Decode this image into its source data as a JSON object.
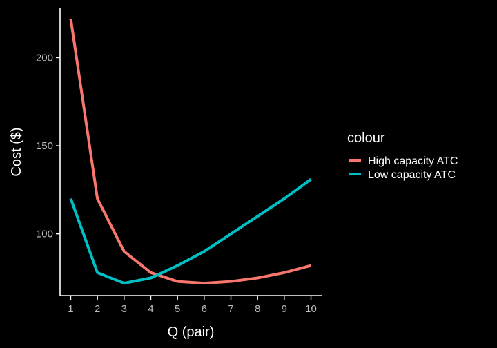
{
  "chart_data": {
    "type": "line",
    "xlabel": "Q (pair)",
    "ylabel": "Cost ($)",
    "x": [
      1,
      2,
      3,
      4,
      5,
      6,
      7,
      8,
      9,
      10
    ],
    "xlim": [
      0.6,
      10.4
    ],
    "ylim": [
      65,
      228
    ],
    "xticks": [
      "1",
      "2",
      "3",
      "4",
      "5",
      "6",
      "7",
      "8",
      "9",
      "10"
    ],
    "yticks": [
      "100",
      "150",
      "200"
    ],
    "grid": false,
    "legend": {
      "title": "colour",
      "position": "right"
    },
    "series": [
      {
        "name": "High capacity ATC",
        "color": "#F8766D",
        "values": [
          222,
          120,
          90,
          78,
          73,
          72,
          73,
          75,
          78,
          82
        ]
      },
      {
        "name": "Low capacity ATC",
        "color": "#00BFC4",
        "values": [
          120,
          78,
          72,
          75,
          82,
          90,
          100,
          110,
          120,
          131
        ]
      }
    ]
  }
}
